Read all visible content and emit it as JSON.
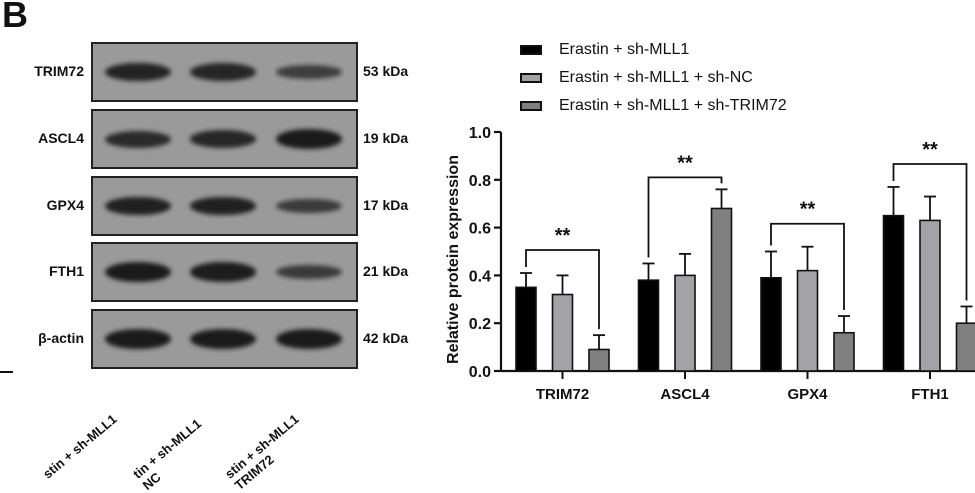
{
  "panel_letter": "B",
  "western_blot": {
    "rows": [
      {
        "protein": "TRIM72",
        "kda": "53 kDa",
        "intensities": [
          0.85,
          0.8,
          0.45
        ]
      },
      {
        "protein": "ASCL4",
        "kda": "19 kDa",
        "intensities": [
          0.75,
          0.8,
          1.0
        ]
      },
      {
        "protein": "GPX4",
        "kda": "17 kDa",
        "intensities": [
          0.9,
          0.9,
          0.5
        ]
      },
      {
        "protein": "FTH1",
        "kda": "21 kDa",
        "intensities": [
          1.0,
          0.95,
          0.5
        ]
      },
      {
        "protein": "β-actin",
        "kda": "42 kDa",
        "intensities": [
          1.0,
          1.0,
          1.0
        ]
      }
    ],
    "lane_labels": [
      "Erastin + sh-MLL1",
      "Erastin + sh-MLL1\n+ sh-NC",
      "Erastin + sh-MLL1\n+ sh-TRIM72"
    ],
    "lane_labels_visible": [
      "stin + sh-MLL1",
      "tin + sh-MLL1\nNC",
      "stin + sh-MLL1\nTRIM72"
    ]
  },
  "legend": [
    {
      "label": "Erastin + sh-MLL1",
      "color": "#000000"
    },
    {
      "label": "Erastin + sh-MLL1 + sh-NC",
      "color": "#a3a3a7"
    },
    {
      "label": "Erastin + sh-MLL1 + sh-TRIM72",
      "color": "#808080"
    }
  ],
  "chart_data": {
    "type": "bar",
    "title": "",
    "xlabel": "",
    "ylabel": "Relative protein expression",
    "ylim": [
      0,
      1.0
    ],
    "yticks": [
      "0.0",
      "0.2",
      "0.4",
      "0.6",
      "0.8",
      "1.0"
    ],
    "categories": [
      "TRIM72",
      "ASCL4",
      "GPX4",
      "FTH1"
    ],
    "series": [
      {
        "name": "Erastin + sh-MLL1",
        "color": "#000000",
        "values": [
          0.35,
          0.38,
          0.39,
          0.65
        ],
        "errors": [
          0.06,
          0.07,
          0.11,
          0.12
        ]
      },
      {
        "name": "Erastin + sh-MLL1 + sh-NC",
        "color": "#a3a3a7",
        "values": [
          0.32,
          0.4,
          0.42,
          0.63
        ],
        "errors": [
          0.08,
          0.09,
          0.1,
          0.1
        ]
      },
      {
        "name": "Erastin + sh-MLL1 + sh-TRIM72",
        "color": "#808080",
        "values": [
          0.09,
          0.68,
          0.16,
          0.2
        ],
        "errors": [
          0.06,
          0.08,
          0.07,
          0.07
        ]
      }
    ],
    "significance": [
      {
        "category": "TRIM72",
        "label": "**",
        "between": [
          0,
          2
        ]
      },
      {
        "category": "ASCL4",
        "label": "**",
        "between": [
          0,
          2
        ]
      },
      {
        "category": "GPX4",
        "label": "**",
        "between": [
          0,
          2
        ]
      },
      {
        "category": "FTH1",
        "label": "**",
        "between": [
          0,
          2
        ]
      }
    ],
    "grid": false,
    "legend_position": "top"
  }
}
